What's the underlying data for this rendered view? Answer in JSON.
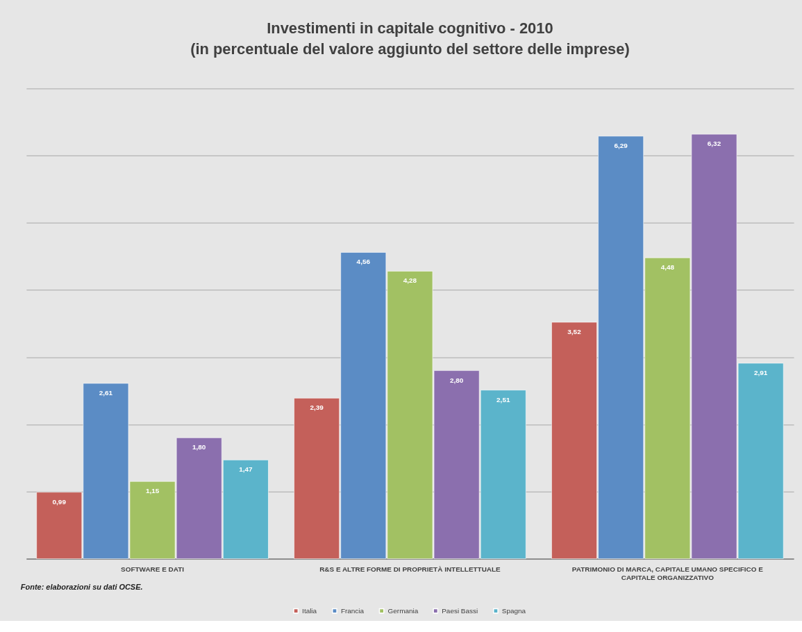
{
  "chart_data": {
    "type": "bar",
    "title": "Investimenti in capitale cognitivo - 2010",
    "subtitle": "(in percentuale del valore aggiunto del settore delle imprese)",
    "categories": [
      "SOFTWARE E DATI",
      "R&S E ALTRE FORME DI PROPRIETÀ INTELLETTUALE",
      "PATRIMONIO DI MARCA, CAPITALE UMANO SPECIFICO E CAPITALE ORGANIZZATIVO"
    ],
    "series": [
      {
        "name": "Italia",
        "color": "#c4605a",
        "values": [
          0.99,
          2.39,
          3.52
        ],
        "value_labels": [
          "0,99",
          "2,39",
          "3,52"
        ]
      },
      {
        "name": "Francia",
        "color": "#5b8cc5",
        "values": [
          2.61,
          4.56,
          6.29
        ],
        "value_labels": [
          "2,61",
          "4,56",
          "6,29"
        ]
      },
      {
        "name": "Germania",
        "color": "#a2c163",
        "values": [
          1.15,
          4.28,
          4.48
        ],
        "value_labels": [
          "1,15",
          "4,28",
          "4,48"
        ]
      },
      {
        "name": "Paesi Bassi",
        "color": "#8b6fae",
        "values": [
          1.8,
          2.8,
          6.32
        ],
        "value_labels": [
          "1,80",
          "2,80",
          "6,32"
        ]
      },
      {
        "name": "Spagna",
        "color": "#5bb4cb",
        "values": [
          1.47,
          2.51,
          2.91
        ],
        "value_labels": [
          "1,47",
          "2,51",
          "2,91"
        ]
      }
    ],
    "ylim": [
      0,
      7
    ],
    "yticks": [
      {
        "value": 0,
        "label": null
      },
      {
        "value": 1,
        "label": null
      },
      {
        "value": 2,
        "label": null
      },
      {
        "value": 3,
        "label": null
      },
      {
        "value": 4,
        "label": null
      },
      {
        "value": 5,
        "label": null
      },
      {
        "value": 6,
        "label": null
      },
      {
        "value": 7,
        "label": null
      }
    ],
    "grid": "y",
    "tick_labels": "x",
    "legend": "bottom",
    "annotations": [
      "Fonte: elaborazioni su dati OCSE."
    ]
  }
}
